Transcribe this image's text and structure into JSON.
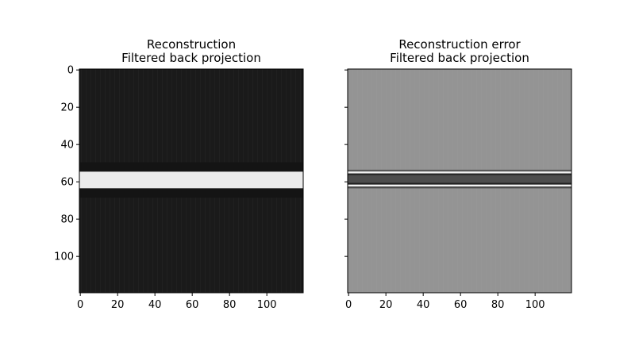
{
  "chart_data": [
    {
      "type": "heatmap",
      "title": "Reconstruction",
      "subtitle": "Filtered back projection",
      "colormap": "gray",
      "image_shape": [
        120,
        120
      ],
      "xlim": [
        -0.5,
        119.5
      ],
      "ylim": [
        119.5,
        -0.5
      ],
      "xticks": [
        0,
        20,
        40,
        60,
        80,
        100
      ],
      "yticks": [
        0,
        20,
        40,
        60,
        80,
        100
      ],
      "show_y_tick_labels": true,
      "background_value": 0.1,
      "bands": [
        {
          "y_start": 55,
          "y_end": 64,
          "value": 0.92
        },
        {
          "y_start": 50,
          "y_end": 55,
          "value": 0.08
        },
        {
          "y_start": 64,
          "y_end": 69,
          "value": 0.08
        }
      ]
    },
    {
      "type": "heatmap",
      "title": "Reconstruction error",
      "subtitle": "Filtered back projection",
      "colormap": "gray",
      "image_shape": [
        120,
        120
      ],
      "xlim": [
        -0.5,
        119.5
      ],
      "ylim": [
        119.5,
        -0.5
      ],
      "xticks": [
        0,
        20,
        40,
        60,
        80,
        100
      ],
      "yticks": [
        0,
        20,
        40,
        60,
        80,
        100
      ],
      "show_y_tick_labels": false,
      "background_value": 0.58,
      "bands": [
        {
          "y_start": 54,
          "y_end": 55,
          "value": 0.35
        },
        {
          "y_start": 55,
          "y_end": 56,
          "value": 0.95
        },
        {
          "y_start": 56,
          "y_end": 57,
          "value": 0.15
        },
        {
          "y_start": 57,
          "y_end": 61,
          "value": 0.3
        },
        {
          "y_start": 61,
          "y_end": 62,
          "value": 0.12
        },
        {
          "y_start": 62,
          "y_end": 63,
          "value": 0.95
        },
        {
          "y_start": 63,
          "y_end": 64,
          "value": 0.3
        }
      ]
    }
  ]
}
